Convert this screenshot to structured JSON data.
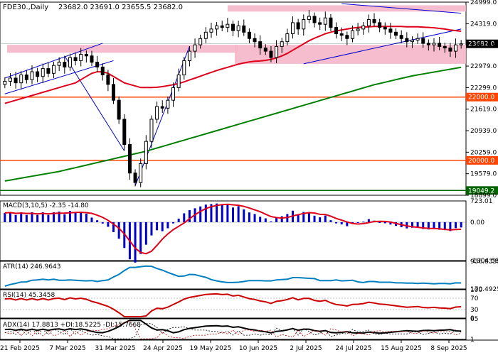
{
  "colors": {
    "candle": "#000000",
    "sma_red": "#e0001b",
    "sma_green": "#008000",
    "trend_blue": "#0000cc",
    "zone_pink": "#f4b6c8",
    "level_orange": "#ff4500",
    "low_green": "#006400",
    "macd_hist": "#0000cc",
    "indicator_line": "#0080c0",
    "rsi_line": "#cc0000",
    "adx_line": "#000000",
    "grid": "#dddddd",
    "price_label_bg": "#000000"
  },
  "chart_data": [
    {
      "type": "candlestick",
      "title": "FDE30.,Daily",
      "ohlc_text": "23682.0 23691.0 23655.5 23682.0",
      "x_ticks": [
        "21 Feb 2025",
        "7 Mar 2025",
        "31 Mar 2025",
        "24 Apr 2025",
        "19 May 2025",
        "10 Jun 2025",
        "2 Jul 2025",
        "24 Jul 2025",
        "15 Aug 2025",
        "8 Sep 2025"
      ],
      "y_ticks": [
        "24999.0",
        "24319.0",
        "23639.0",
        "22979.0",
        "22299.0",
        "21619.0",
        "20939.0",
        "20259.0",
        "19579.0",
        "18899.0"
      ],
      "ylim": [
        18899,
        24999
      ],
      "current_price": "23682.0",
      "level_labels": [
        "22000.0",
        "20000.0",
        "19049.2"
      ],
      "levels": [
        22000,
        20000,
        19049.2
      ],
      "closes": [
        22500,
        22600,
        22450,
        22700,
        22550,
        22800,
        22650,
        22900,
        22750,
        23000,
        23100,
        22950,
        23250,
        23150,
        23350,
        23300,
        23100,
        22950,
        22700,
        22400,
        21900,
        21300,
        20500,
        19600,
        19300,
        19900,
        20600,
        21300,
        21700,
        21650,
        21900,
        22300,
        22700,
        23150,
        23450,
        23650,
        23850,
        24050,
        24150,
        24250,
        24200,
        24300,
        24100,
        24250,
        24050,
        23850,
        23750,
        23550,
        23450,
        23250,
        23600,
        23750,
        24000,
        24350,
        24150,
        24450,
        24550,
        24350,
        24300,
        24500,
        24200,
        24000,
        23950,
        23850,
        24100,
        24150,
        24250,
        24450,
        24350,
        24200,
        24150,
        24050,
        23950,
        23850,
        23750,
        23800,
        23850,
        23700,
        23650,
        23700,
        23600,
        23550,
        23450,
        23650,
        23682
      ],
      "sma_red": [
        21800,
        21850,
        21900,
        21950,
        22000,
        22050,
        22100,
        22150,
        22200,
        22250,
        22300,
        22350,
        22400,
        22450,
        22550,
        22650,
        22750,
        22800,
        22800,
        22750,
        22650,
        22550,
        22450,
        22400,
        22350,
        22300,
        22300,
        22300,
        22310,
        22330,
        22360,
        22390,
        22430,
        22480,
        22540,
        22600,
        22660,
        22720,
        22780,
        22840,
        22890,
        22940,
        22990,
        23040,
        23080,
        23110,
        23130,
        23140,
        23160,
        23190,
        23240,
        23300,
        23380,
        23480,
        23580,
        23680,
        23780,
        23860,
        23930,
        24000,
        24050,
        24090,
        24120,
        24150,
        24180,
        24200,
        24210,
        24220,
        24230,
        24230,
        24230,
        24230,
        24230,
        24230,
        24220,
        24220,
        24220,
        24210,
        24200,
        24190,
        24170,
        24150,
        24120,
        24100,
        24080
      ],
      "sma_green": [
        19350,
        19380,
        19410,
        19440,
        19470,
        19500,
        19530,
        19560,
        19590,
        19620,
        19650,
        19690,
        19730,
        19770,
        19810,
        19850,
        19890,
        19930,
        19970,
        20010,
        20050,
        20090,
        20130,
        20170,
        20210,
        20250,
        20290,
        20340,
        20390,
        20440,
        20490,
        20540,
        20590,
        20640,
        20690,
        20740,
        20790,
        20840,
        20890,
        20940,
        20990,
        21040,
        21090,
        21140,
        21190,
        21240,
        21290,
        21340,
        21390,
        21440,
        21490,
        21540,
        21590,
        21640,
        21690,
        21740,
        21790,
        21840,
        21890,
        21940,
        21990,
        22040,
        22090,
        22140,
        22190,
        22240,
        22290,
        22340,
        22390,
        22430,
        22470,
        22510,
        22550,
        22590,
        22630,
        22670,
        22700,
        22730,
        22760,
        22790,
        22820,
        22850,
        22880,
        22910,
        22940
      ],
      "zones": [
        {
          "from": 23400,
          "to": 23650,
          "label": "pink support zone"
        },
        {
          "from": 24700,
          "to": 24900,
          "label": "pink resistance zone"
        }
      ]
    },
    {
      "type": "line",
      "title": "MACD(3,10,5) -2.35 -14.80",
      "y_ticks": [
        "723.01",
        "0.00",
        "-1304.58"
      ],
      "ylim": [
        -1304.58,
        723.01
      ]
    },
    {
      "type": "line",
      "title": "ATR(14) 246.9643",
      "y_ticks": [
        "936.8339",
        "170.4925"
      ],
      "ylim": [
        170.4925,
        936.8339
      ]
    },
    {
      "type": "line",
      "title": "RSI(14) 45.3458",
      "y_ticks": [
        "100",
        "70",
        "30",
        "0"
      ],
      "ylim": [
        0,
        100
      ]
    },
    {
      "type": "line",
      "title": "ADX(14) 17.8813 +DI:18.5225 -DI:15.7668",
      "y_ticks": [
        "65",
        "1"
      ],
      "ylim": [
        1,
        65
      ]
    }
  ]
}
